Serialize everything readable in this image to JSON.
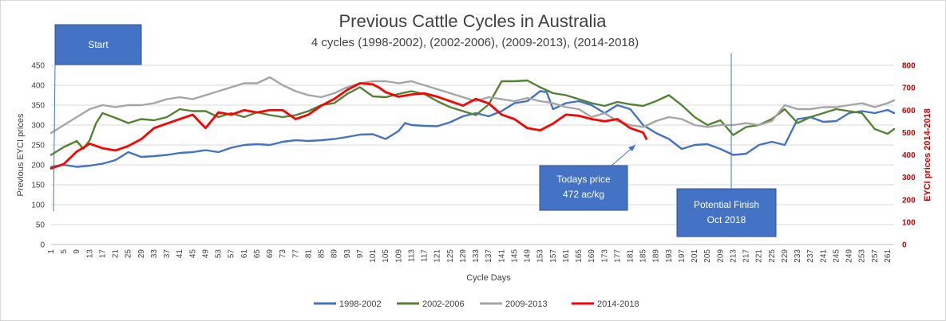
{
  "chart_data": {
    "type": "line",
    "title": "Previous Cattle Cycles in Australia",
    "subtitle": "4 cycles (1998-2002), (2002-2006), (2009-2013), (2014-2018)",
    "xlabel": "Cycle Days",
    "ylabel_left": "Previous EYCI prices",
    "ylabel_right": "EYCI prices 2014-2018",
    "xlim": [
      1,
      263
    ],
    "ylim_left": [
      0,
      450
    ],
    "ylim_right": [
      0,
      800
    ],
    "yticks_left": [
      "0",
      "50",
      "100",
      "150",
      "200",
      "250",
      "300",
      "350",
      "400",
      "450"
    ],
    "yticks_right": [
      "0",
      "100",
      "200",
      "300",
      "400",
      "500",
      "600",
      "700",
      "800"
    ],
    "xticks": [
      "1",
      "5",
      "9",
      "13",
      "17",
      "21",
      "25",
      "29",
      "33",
      "37",
      "41",
      "45",
      "49",
      "53",
      "57",
      "61",
      "65",
      "69",
      "73",
      "77",
      "81",
      "85",
      "89",
      "93",
      "97",
      "101",
      "105",
      "109",
      "113",
      "117",
      "121",
      "125",
      "129",
      "133",
      "137",
      "141",
      "145",
      "149",
      "153",
      "157",
      "161",
      "165",
      "169",
      "173",
      "177",
      "181",
      "185",
      "189",
      "193",
      "197",
      "201",
      "205",
      "209",
      "213",
      "217",
      "221",
      "225",
      "229",
      "233",
      "237",
      "241",
      "245",
      "249",
      "253",
      "257",
      "261"
    ],
    "grid": true,
    "legend_position": "bottom",
    "series": [
      {
        "name": "1998-2002",
        "axis": "left",
        "color": "#4472c4",
        "points": [
          [
            1,
            195
          ],
          [
            5,
            200
          ],
          [
            9,
            195
          ],
          [
            13,
            198
          ],
          [
            17,
            203
          ],
          [
            21,
            212
          ],
          [
            25,
            232
          ],
          [
            29,
            220
          ],
          [
            33,
            222
          ],
          [
            37,
            225
          ],
          [
            41,
            230
          ],
          [
            45,
            232
          ],
          [
            49,
            237
          ],
          [
            53,
            232
          ],
          [
            57,
            243
          ],
          [
            61,
            250
          ],
          [
            65,
            252
          ],
          [
            69,
            250
          ],
          [
            73,
            258
          ],
          [
            77,
            262
          ],
          [
            81,
            260
          ],
          [
            85,
            262
          ],
          [
            89,
            265
          ],
          [
            93,
            270
          ],
          [
            97,
            276
          ],
          [
            101,
            277
          ],
          [
            105,
            265
          ],
          [
            109,
            285
          ],
          [
            111,
            305
          ],
          [
            113,
            300
          ],
          [
            117,
            298
          ],
          [
            121,
            297
          ],
          [
            125,
            307
          ],
          [
            129,
            322
          ],
          [
            133,
            330
          ],
          [
            137,
            322
          ],
          [
            141,
            335
          ],
          [
            145,
            355
          ],
          [
            149,
            360
          ],
          [
            153,
            385
          ],
          [
            155,
            383
          ],
          [
            157,
            340
          ],
          [
            161,
            355
          ],
          [
            165,
            360
          ],
          [
            169,
            350
          ],
          [
            173,
            330
          ],
          [
            177,
            350
          ],
          [
            181,
            340
          ],
          [
            185,
            300
          ],
          [
            189,
            280
          ],
          [
            193,
            265
          ],
          [
            197,
            240
          ],
          [
            201,
            250
          ],
          [
            205,
            252
          ],
          [
            209,
            240
          ],
          [
            213,
            225
          ],
          [
            217,
            228
          ],
          [
            221,
            250
          ],
          [
            225,
            258
          ],
          [
            229,
            250
          ],
          [
            233,
            315
          ],
          [
            237,
            320
          ],
          [
            241,
            308
          ],
          [
            245,
            310
          ],
          [
            249,
            330
          ],
          [
            253,
            335
          ],
          [
            257,
            330
          ],
          [
            261,
            338
          ],
          [
            263,
            330
          ]
        ]
      },
      {
        "name": "2002-2006",
        "axis": "left",
        "color": "#548235",
        "points": [
          [
            1,
            225
          ],
          [
            5,
            245
          ],
          [
            9,
            260
          ],
          [
            11,
            240
          ],
          [
            13,
            262
          ],
          [
            15,
            305
          ],
          [
            17,
            330
          ],
          [
            21,
            318
          ],
          [
            25,
            305
          ],
          [
            29,
            315
          ],
          [
            33,
            312
          ],
          [
            37,
            320
          ],
          [
            41,
            340
          ],
          [
            45,
            335
          ],
          [
            49,
            335
          ],
          [
            53,
            320
          ],
          [
            57,
            330
          ],
          [
            61,
            320
          ],
          [
            65,
            332
          ],
          [
            69,
            325
          ],
          [
            73,
            320
          ],
          [
            77,
            325
          ],
          [
            81,
            335
          ],
          [
            85,
            350
          ],
          [
            89,
            355
          ],
          [
            93,
            378
          ],
          [
            97,
            395
          ],
          [
            101,
            372
          ],
          [
            105,
            370
          ],
          [
            109,
            378
          ],
          [
            113,
            385
          ],
          [
            117,
            378
          ],
          [
            121,
            360
          ],
          [
            125,
            345
          ],
          [
            129,
            335
          ],
          [
            133,
            325
          ],
          [
            137,
            352
          ],
          [
            141,
            410
          ],
          [
            145,
            410
          ],
          [
            149,
            412
          ],
          [
            153,
            395
          ],
          [
            157,
            380
          ],
          [
            161,
            375
          ],
          [
            165,
            365
          ],
          [
            169,
            355
          ],
          [
            173,
            348
          ],
          [
            177,
            358
          ],
          [
            181,
            352
          ],
          [
            185,
            348
          ],
          [
            189,
            360
          ],
          [
            193,
            375
          ],
          [
            197,
            350
          ],
          [
            201,
            320
          ],
          [
            205,
            300
          ],
          [
            209,
            312
          ],
          [
            213,
            275
          ],
          [
            217,
            295
          ],
          [
            221,
            300
          ],
          [
            225,
            315
          ],
          [
            229,
            340
          ],
          [
            233,
            305
          ],
          [
            237,
            320
          ],
          [
            241,
            330
          ],
          [
            245,
            340
          ],
          [
            249,
            335
          ],
          [
            253,
            330
          ],
          [
            257,
            290
          ],
          [
            261,
            278
          ],
          [
            263,
            290
          ]
        ]
      },
      {
        "name": "2009-2013",
        "axis": "left",
        "color": "#a5a5a5",
        "points": [
          [
            1,
            280
          ],
          [
            5,
            300
          ],
          [
            9,
            320
          ],
          [
            13,
            340
          ],
          [
            17,
            350
          ],
          [
            21,
            345
          ],
          [
            25,
            350
          ],
          [
            29,
            350
          ],
          [
            33,
            355
          ],
          [
            37,
            365
          ],
          [
            41,
            370
          ],
          [
            45,
            365
          ],
          [
            49,
            375
          ],
          [
            53,
            385
          ],
          [
            57,
            395
          ],
          [
            61,
            405
          ],
          [
            65,
            405
          ],
          [
            69,
            420
          ],
          [
            73,
            400
          ],
          [
            77,
            385
          ],
          [
            81,
            375
          ],
          [
            85,
            370
          ],
          [
            89,
            380
          ],
          [
            93,
            395
          ],
          [
            97,
            405
          ],
          [
            101,
            410
          ],
          [
            105,
            410
          ],
          [
            109,
            405
          ],
          [
            113,
            410
          ],
          [
            117,
            400
          ],
          [
            121,
            390
          ],
          [
            125,
            380
          ],
          [
            129,
            370
          ],
          [
            133,
            360
          ],
          [
            137,
            370
          ],
          [
            141,
            365
          ],
          [
            145,
            360
          ],
          [
            149,
            368
          ],
          [
            153,
            360
          ],
          [
            157,
            355
          ],
          [
            161,
            345
          ],
          [
            165,
            340
          ],
          [
            169,
            320
          ],
          [
            173,
            330
          ],
          [
            177,
            310
          ],
          [
            181,
            300
          ],
          [
            185,
            295
          ],
          [
            189,
            310
          ],
          [
            193,
            320
          ],
          [
            197,
            315
          ],
          [
            201,
            300
          ],
          [
            205,
            295
          ],
          [
            209,
            300
          ],
          [
            213,
            300
          ],
          [
            217,
            305
          ],
          [
            221,
            300
          ],
          [
            225,
            310
          ],
          [
            229,
            350
          ],
          [
            233,
            340
          ],
          [
            237,
            340
          ],
          [
            241,
            345
          ],
          [
            245,
            345
          ],
          [
            249,
            350
          ],
          [
            253,
            355
          ],
          [
            257,
            345
          ],
          [
            261,
            355
          ],
          [
            263,
            362
          ]
        ]
      },
      {
        "name": "2014-2018",
        "axis": "right",
        "color": "#ff0000",
        "points": [
          [
            1,
            340
          ],
          [
            5,
            360
          ],
          [
            9,
            415
          ],
          [
            13,
            450
          ],
          [
            17,
            430
          ],
          [
            21,
            420
          ],
          [
            25,
            440
          ],
          [
            29,
            470
          ],
          [
            33,
            520
          ],
          [
            37,
            540
          ],
          [
            41,
            560
          ],
          [
            45,
            580
          ],
          [
            49,
            520
          ],
          [
            53,
            590
          ],
          [
            57,
            580
          ],
          [
            61,
            600
          ],
          [
            65,
            590
          ],
          [
            69,
            600
          ],
          [
            73,
            600
          ],
          [
            77,
            560
          ],
          [
            81,
            580
          ],
          [
            85,
            620
          ],
          [
            89,
            650
          ],
          [
            93,
            690
          ],
          [
            97,
            720
          ],
          [
            101,
            715
          ],
          [
            103,
            700
          ],
          [
            105,
            680
          ],
          [
            109,
            660
          ],
          [
            113,
            670
          ],
          [
            117,
            675
          ],
          [
            121,
            660
          ],
          [
            125,
            640
          ],
          [
            129,
            620
          ],
          [
            133,
            650
          ],
          [
            137,
            630
          ],
          [
            141,
            580
          ],
          [
            145,
            560
          ],
          [
            149,
            520
          ],
          [
            153,
            510
          ],
          [
            157,
            540
          ],
          [
            161,
            580
          ],
          [
            165,
            575
          ],
          [
            169,
            560
          ],
          [
            173,
            550
          ],
          [
            177,
            560
          ],
          [
            181,
            520
          ],
          [
            185,
            500
          ],
          [
            186,
            472
          ]
        ]
      }
    ]
  },
  "annotations": {
    "start": {
      "label": "Start"
    },
    "todays_price": {
      "line1": "Todays price",
      "line2": "472 ac/kg"
    },
    "potential_finish": {
      "line1": "Potential Finish",
      "line2": "Oct 2018"
    }
  },
  "colors": {
    "callout_fill": "#4472c4",
    "callout_border": "#2f528f",
    "right_axis": "#cc0000",
    "grid": "#d9d9d9"
  }
}
